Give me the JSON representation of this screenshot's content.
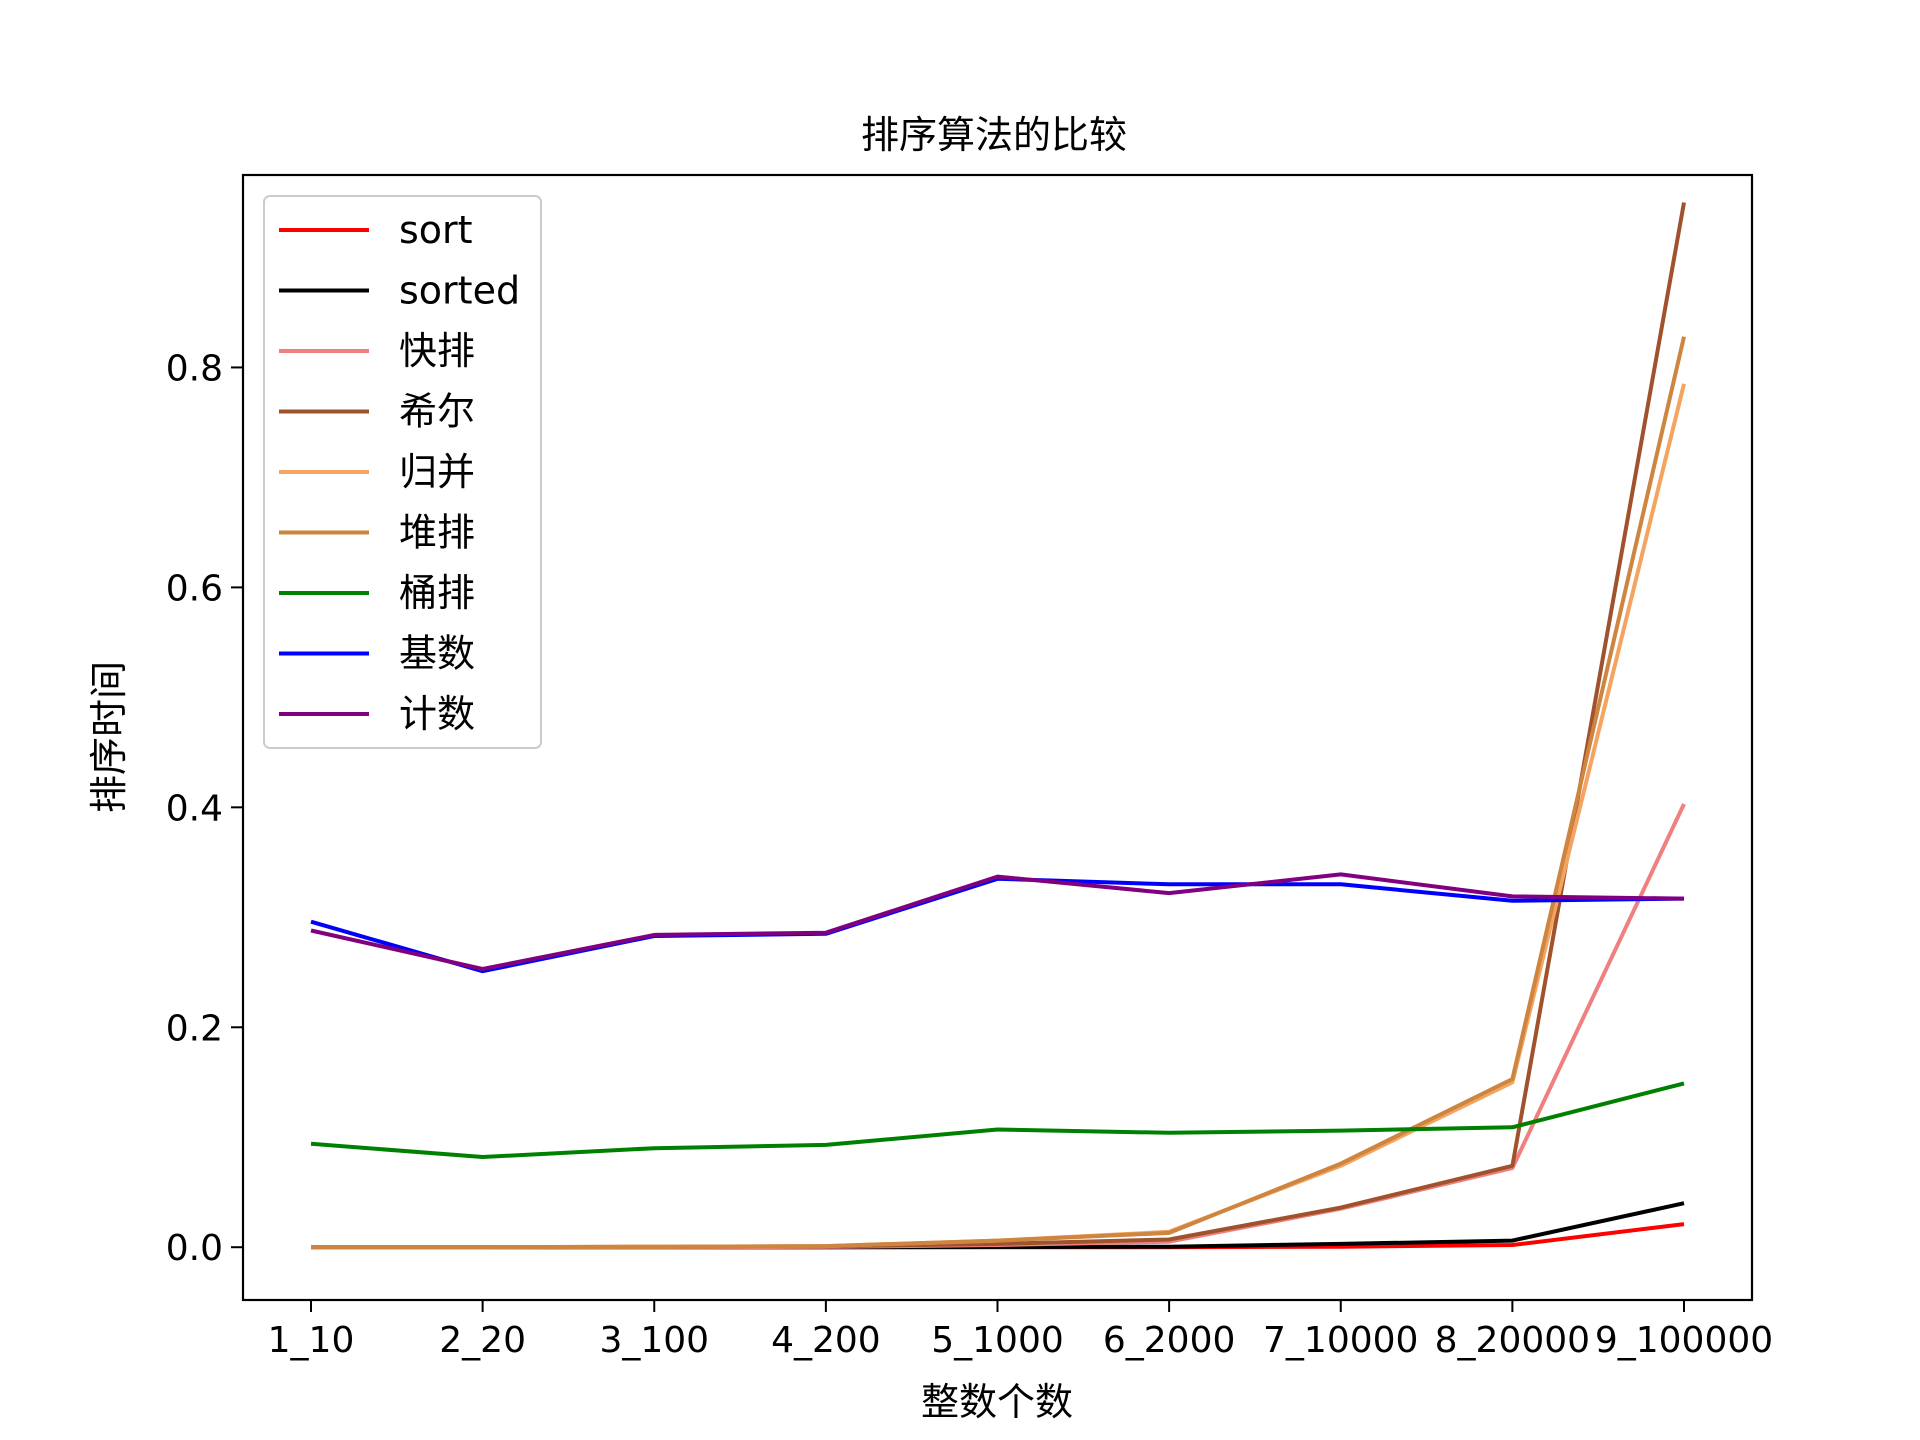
{
  "chart_data": {
    "type": "line",
    "title": "排序算法的比较",
    "xlabel": "整数个数",
    "ylabel": "排序时间",
    "categories": [
      "1_10",
      "2_20",
      "3_100",
      "4_200",
      "5_1000",
      "6_2000",
      "7_10000",
      "8_20000",
      "9_100000"
    ],
    "ylim": [
      -0.048,
      0.975
    ],
    "yticks": [
      "0.0",
      "0.2",
      "0.4",
      "0.6",
      "0.8"
    ],
    "grid": false,
    "legend_position": "top-left",
    "series": [
      {
        "name": "sort",
        "color": "#ff0000",
        "values": [
          0.0,
          0.0,
          0.0,
          0.0,
          0.0,
          0.0,
          0.0005,
          0.002,
          0.021
        ]
      },
      {
        "name": "sorted",
        "color": "#000000",
        "values": [
          0.0,
          0.0,
          0.0,
          0.0,
          0.0002,
          0.0005,
          0.003,
          0.006,
          0.04
        ]
      },
      {
        "name": "快排",
        "color": "#f08080",
        "values": [
          0.0,
          0.0,
          0.0,
          0.0003,
          0.002,
          0.005,
          0.035,
          0.072,
          0.403
        ]
      },
      {
        "name": "希尔",
        "color": "#a0522d",
        "values": [
          0.0,
          0.0,
          0.0003,
          0.0008,
          0.003,
          0.007,
          0.036,
          0.074,
          0.95
        ]
      },
      {
        "name": "归并",
        "color": "#f4a460",
        "values": [
          0.0,
          0.0,
          0.0005,
          0.001,
          0.006,
          0.014,
          0.074,
          0.15,
          0.785
        ]
      },
      {
        "name": "堆排",
        "color": "#cd853f",
        "values": [
          0.0,
          0.0,
          0.0005,
          0.001,
          0.006,
          0.013,
          0.076,
          0.153,
          0.828
        ]
      },
      {
        "name": "桶排",
        "color": "#008000",
        "values": [
          0.094,
          0.082,
          0.09,
          0.093,
          0.107,
          0.104,
          0.106,
          0.109,
          0.149
        ]
      },
      {
        "name": "基数",
        "color": "#0000ff",
        "values": [
          0.296,
          0.251,
          0.283,
          0.285,
          0.335,
          0.33,
          0.33,
          0.315,
          0.317
        ]
      },
      {
        "name": "计数",
        "color": "#800080",
        "values": [
          0.288,
          0.253,
          0.284,
          0.286,
          0.337,
          0.322,
          0.339,
          0.319,
          0.317
        ]
      }
    ]
  }
}
